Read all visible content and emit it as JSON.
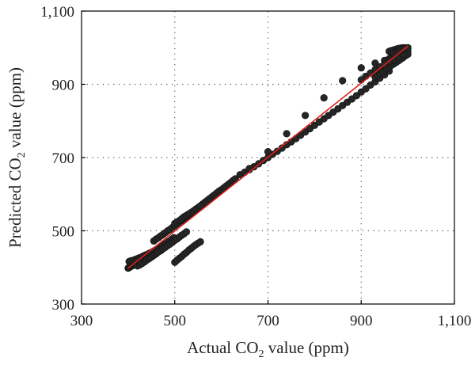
{
  "chart_data": {
    "type": "scatter",
    "xlabel": {
      "prefix": "Actual CO",
      "sub": "2",
      "suffix": " value (ppm)"
    },
    "ylabel": {
      "prefix": "Predicted CO",
      "sub": "2",
      "suffix": " value (ppm)"
    },
    "xlim": [
      300,
      1100
    ],
    "ylim": [
      300,
      1100
    ],
    "xticks": [
      300,
      500,
      700,
      900,
      1100
    ],
    "xtick_labels": [
      "300",
      "500",
      "700",
      "900",
      "1,100"
    ],
    "yticks": [
      300,
      500,
      700,
      900,
      1100
    ],
    "ytick_labels": [
      "300",
      "500",
      "700",
      "900",
      "1,100"
    ],
    "grid": true,
    "colors": {
      "points": "#262626",
      "fit_line": "#e0201b",
      "grid": "#555555"
    },
    "fit_line": {
      "x": [
        400,
        1000
      ],
      "y": [
        398,
        1004
      ]
    },
    "series": [
      {
        "x": [
          400,
          402,
          404,
          406,
          408,
          410,
          412,
          414,
          416,
          418,
          420,
          422,
          424,
          426,
          428,
          430,
          432,
          434,
          436,
          438,
          440,
          442,
          444,
          446,
          448,
          450,
          402,
          406,
          410,
          414,
          418,
          422,
          426,
          430,
          434,
          438,
          442,
          446,
          450,
          454,
          458,
          462,
          466,
          470,
          474,
          478,
          482,
          486,
          490,
          494,
          498,
          455,
          460,
          465,
          470,
          475,
          480,
          485,
          490,
          495,
          500,
          505,
          510,
          515,
          520,
          525,
          530,
          535,
          540,
          545,
          550,
          555,
          560,
          565,
          570,
          575,
          580,
          585,
          590,
          595,
          600,
          605,
          610,
          615,
          620,
          625,
          630,
          420,
          425,
          430,
          435,
          440,
          445,
          450,
          455,
          460,
          465,
          470,
          475,
          480,
          485,
          490,
          495,
          500,
          505,
          510,
          515,
          520,
          525,
          500,
          505,
          510,
          515,
          520,
          525,
          530,
          535,
          540,
          545,
          550,
          555,
          500,
          505,
          510,
          515,
          520,
          525,
          530,
          535,
          540,
          545,
          550,
          555,
          640,
          650,
          660,
          670,
          680,
          690,
          700,
          710,
          720,
          730,
          740,
          750,
          760,
          770,
          780,
          790,
          800,
          810,
          820,
          830,
          840,
          850,
          860,
          870,
          880,
          890,
          900,
          910,
          920,
          930,
          940,
          950,
          960,
          660,
          700,
          740,
          780,
          820,
          860,
          900,
          930,
          950,
          960,
          965,
          970,
          975,
          980,
          985,
          990,
          995,
          1000,
          930,
          935,
          940,
          945,
          950,
          955,
          960,
          965,
          970,
          975,
          980,
          985,
          990,
          995,
          1000,
          900,
          910,
          920,
          930,
          940,
          950,
          960,
          970,
          980,
          990,
          1000,
          960,
          965,
          970,
          975,
          980,
          985,
          990,
          995,
          1000,
          970,
          975,
          980,
          985,
          990,
          995,
          1000
        ],
        "y": [
          398,
          400,
          401,
          403,
          404,
          406,
          407,
          408,
          409,
          411,
          412,
          413,
          415,
          416,
          418,
          419,
          421,
          423,
          424,
          426,
          427,
          429,
          431,
          432,
          434,
          436,
          416,
          418,
          419,
          421,
          423,
          425,
          427,
          429,
          432,
          434,
          436,
          439,
          441,
          444,
          447,
          450,
          453,
          456,
          459,
          463,
          466,
          470,
          473,
          477,
          481,
          472,
          477,
          481,
          486,
          490,
          495,
          500,
          504,
          509,
          514,
          519,
          524,
          528,
          533,
          538,
          543,
          548,
          553,
          558,
          563,
          568,
          573,
          578,
          583,
          588,
          593,
          598,
          603,
          608,
          612,
          617,
          622,
          627,
          632,
          637,
          642,
          404,
          407,
          411,
          415,
          420,
          424,
          428,
          433,
          437,
          442,
          446,
          451,
          455,
          460,
          464,
          469,
          474,
          478,
          483,
          488,
          492,
          497,
          520,
          524,
          528,
          533,
          538,
          542,
          546,
          550,
          554,
          559,
          563,
          568,
          414,
          420,
          425,
          430,
          436,
          441,
          447,
          452,
          457,
          462,
          466,
          470,
          653,
          660,
          667,
          675,
          683,
          692,
          700,
          709,
          717,
          726,
          735,
          743,
          752,
          761,
          770,
          779,
          788,
          797,
          806,
          815,
          824,
          833,
          842,
          851,
          860,
          869,
          879,
          888,
          898,
          907,
          917,
          926,
          936,
          670,
          716,
          765,
          815,
          863,
          910,
          945,
          958,
          965,
          970,
          973,
          977,
          980,
          984,
          988,
          991,
          995,
          998,
          920,
          925,
          930,
          934,
          938,
          943,
          947,
          952,
          956,
          960,
          964,
          969,
          973,
          978,
          982,
          912,
          922,
          931,
          940,
          948,
          955,
          962,
          968,
          975,
          982,
          990,
          990,
          992,
          994,
          996,
          998,
          999,
          1000,
          1000,
          1000,
          985,
          988,
          990,
          993,
          996,
          998,
          1000
        ]
      }
    ]
  }
}
